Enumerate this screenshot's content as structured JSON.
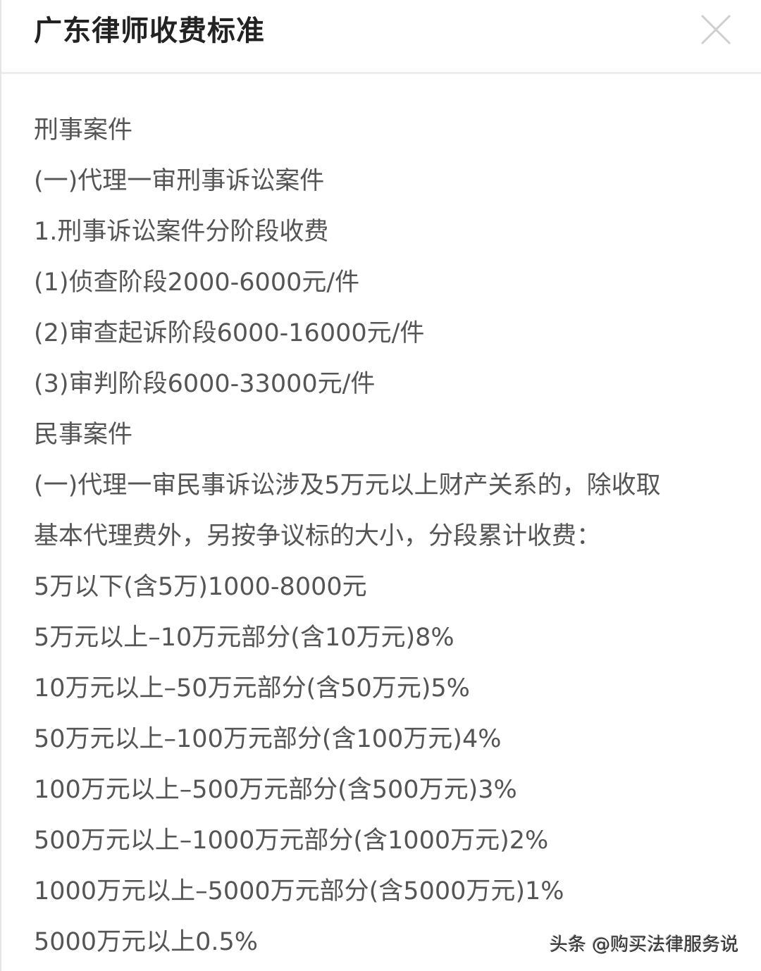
{
  "dialog": {
    "title": "广东律师收费标准",
    "close_icon": "close-x-icon",
    "lines": [
      "刑事案件",
      "(一)代理一审刑事诉讼案件",
      "1.刑事诉讼案件分阶段收费",
      "(1)侦查阶段2000-6000元/件",
      "(2)审查起诉阶段6000-16000元/件",
      "(3)审判阶段6000-33000元/件",
      "民事案件",
      "(一)代理一审民事诉讼涉及5万元以上财产关系的，除收取",
      "基本代理费外，另按争议标的大小，分段累计收费：",
      "5万以下(含5万)1000-8000元",
      "5万元以上–10万元部分(含10万元)8%",
      "10万元以上–50万元部分(含50万元)5%",
      "50万元以上–100万元部分(含100万元)4%",
      "100万元以上–500万元部分(含500万元)3%",
      "500万元以上–1000万元部分(含1000万元)2%",
      "1000万元以上–5000万元部分(含5000万元)1%",
      "5000万元以上0.5%"
    ]
  },
  "watermark": "头条 @购买法律服务说"
}
